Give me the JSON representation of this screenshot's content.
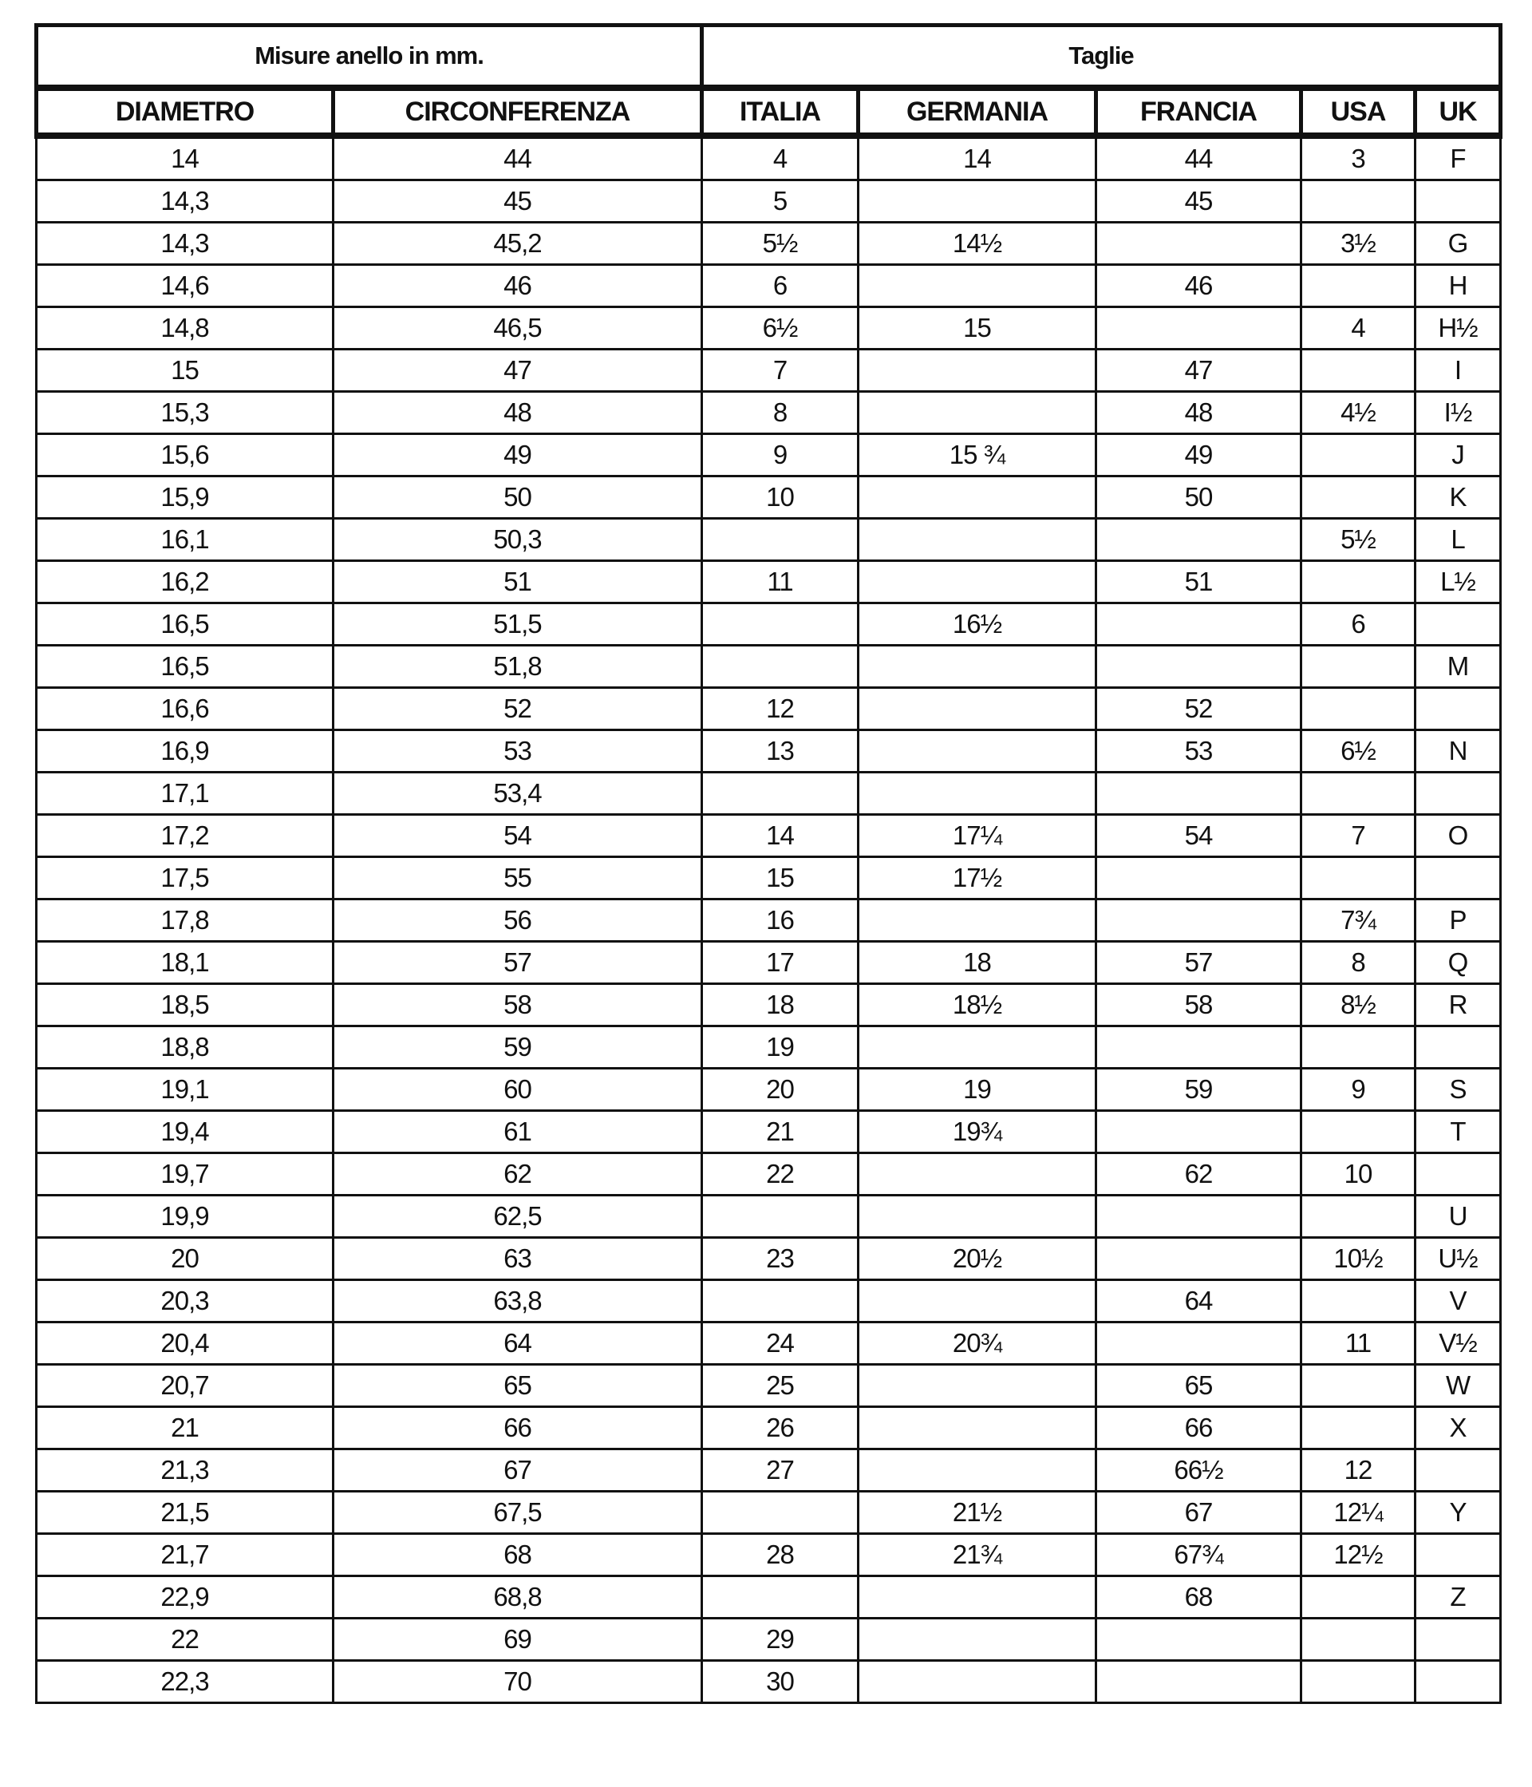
{
  "header": {
    "group_measures": "Misure anello in mm.",
    "group_sizes": "Taglie",
    "columns": [
      "DIAMETRO",
      "CIRCONFERENZA",
      "ITALIA",
      "GERMANIA",
      "FRANCIA",
      "USA",
      "UK"
    ]
  },
  "rows": [
    [
      "14",
      "44",
      "4",
      "14",
      "44",
      "3",
      "F"
    ],
    [
      "14,3",
      "45",
      "5",
      "",
      "45",
      "",
      ""
    ],
    [
      "14,3",
      "45,2",
      "5½",
      "14½",
      "",
      "3½",
      "G"
    ],
    [
      "14,6",
      "46",
      "6",
      "",
      "46",
      "",
      "H"
    ],
    [
      "14,8",
      "46,5",
      "6½",
      "15",
      "",
      "4",
      "H½"
    ],
    [
      "15",
      "47",
      "7",
      "",
      "47",
      "",
      "I"
    ],
    [
      "15,3",
      "48",
      "8",
      "",
      "48",
      "4½",
      "I½"
    ],
    [
      "15,6",
      "49",
      "9",
      "15 ¾",
      "49",
      "",
      "J"
    ],
    [
      "15,9",
      "50",
      "10",
      "",
      "50",
      "",
      "K"
    ],
    [
      "16,1",
      "50,3",
      "",
      "",
      "",
      "5½",
      "L"
    ],
    [
      "16,2",
      "51",
      "11",
      "",
      "51",
      "",
      "L½"
    ],
    [
      "16,5",
      "51,5",
      "",
      "16½",
      "",
      "6",
      ""
    ],
    [
      "16,5",
      "51,8",
      "",
      "",
      "",
      "",
      "M"
    ],
    [
      "16,6",
      "52",
      "12",
      "",
      "52",
      "",
      ""
    ],
    [
      "16,9",
      "53",
      "13",
      "",
      "53",
      "6½",
      "N"
    ],
    [
      "17,1",
      "53,4",
      "",
      "",
      "",
      "",
      ""
    ],
    [
      "17,2",
      "54",
      "14",
      "17¼",
      "54",
      "7",
      "O"
    ],
    [
      "17,5",
      "55",
      "15",
      "17½",
      "",
      "",
      ""
    ],
    [
      "17,8",
      "56",
      "16",
      "",
      "",
      "7¾",
      "P"
    ],
    [
      "18,1",
      "57",
      "17",
      "18",
      "57",
      "8",
      "Q"
    ],
    [
      "18,5",
      "58",
      "18",
      "18½",
      "58",
      "8½",
      "R"
    ],
    [
      "18,8",
      "59",
      "19",
      "",
      "",
      "",
      ""
    ],
    [
      "19,1",
      "60",
      "20",
      "19",
      "59",
      "9",
      "S"
    ],
    [
      "19,4",
      "61",
      "21",
      "19¾",
      "",
      "",
      "T"
    ],
    [
      "19,7",
      "62",
      "22",
      "",
      "62",
      "10",
      ""
    ],
    [
      "19,9",
      "62,5",
      "",
      "",
      "",
      "",
      "U"
    ],
    [
      "20",
      "63",
      "23",
      "20½",
      "",
      "10½",
      "U½"
    ],
    [
      "20,3",
      "63,8",
      "",
      "",
      "64",
      "",
      "V"
    ],
    [
      "20,4",
      "64",
      "24",
      "20¾",
      "",
      "11",
      "V½"
    ],
    [
      "20,7",
      "65",
      "25",
      "",
      "65",
      "",
      "W"
    ],
    [
      "21",
      "66",
      "26",
      "",
      "66",
      "",
      "X"
    ],
    [
      "21,3",
      "67",
      "27",
      "",
      "66½",
      "12",
      ""
    ],
    [
      "21,5",
      "67,5",
      "",
      "21½",
      "67",
      "12¼",
      "Y"
    ],
    [
      "21,7",
      "68",
      "28",
      "21¾",
      "67¾",
      "12½",
      ""
    ],
    [
      "22,9",
      "68,8",
      "",
      "",
      "68",
      "",
      "Z"
    ],
    [
      "22",
      "69",
      "29",
      "",
      "",
      "",
      ""
    ],
    [
      "22,3",
      "70",
      "30",
      "",
      "",
      "",
      ""
    ]
  ]
}
